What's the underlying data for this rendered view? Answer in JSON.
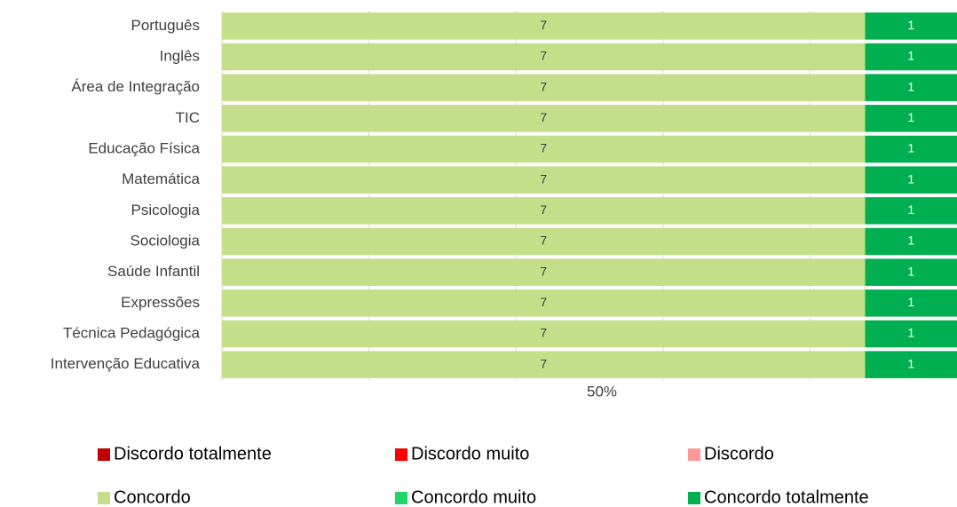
{
  "chart_data": {
    "type": "stacked_bar_100",
    "categories": [
      "Português",
      "Inglês",
      "Área de Integração",
      "TIC",
      "Educação Física",
      "Matemática",
      "Psicologia",
      "Sociologia",
      "Saúde Infantil",
      "Expressões",
      "Técnica Pedagógica",
      "Intervenção Educativa"
    ],
    "series": [
      {
        "name": "Discordo totalmente",
        "color": "#c00000",
        "values": [
          0,
          0,
          0,
          0,
          0,
          0,
          0,
          0,
          0,
          0,
          0,
          0
        ]
      },
      {
        "name": "Discordo muito",
        "color": "#ff0000",
        "values": [
          0,
          0,
          0,
          0,
          0,
          0,
          0,
          0,
          0,
          0,
          0,
          0
        ]
      },
      {
        "name": "Discordo",
        "color": "#ff9999",
        "values": [
          0,
          0,
          0,
          0,
          0,
          0,
          0,
          0,
          0,
          0,
          0,
          0
        ]
      },
      {
        "name": "Concordo",
        "color": "#c4df8a",
        "values": [
          7,
          7,
          7,
          7,
          7,
          7,
          7,
          7,
          7,
          7,
          7,
          7
        ]
      },
      {
        "name": "Concordo muito",
        "color": "#1fd66a",
        "values": [
          0,
          0,
          0,
          0,
          0,
          0,
          0,
          0,
          0,
          0,
          0,
          0
        ]
      },
      {
        "name": "Concordo totalmente",
        "color": "#00b050",
        "values": [
          1,
          1,
          1,
          1,
          1,
          1,
          1,
          1,
          1,
          1,
          1,
          1
        ]
      }
    ],
    "xlim": [
      0,
      100
    ],
    "xticks": [
      {
        "value": 50,
        "label": "50%"
      }
    ],
    "xgrid": [
      0,
      20,
      40,
      60,
      80
    ],
    "grid": true,
    "legend": "bottom"
  }
}
